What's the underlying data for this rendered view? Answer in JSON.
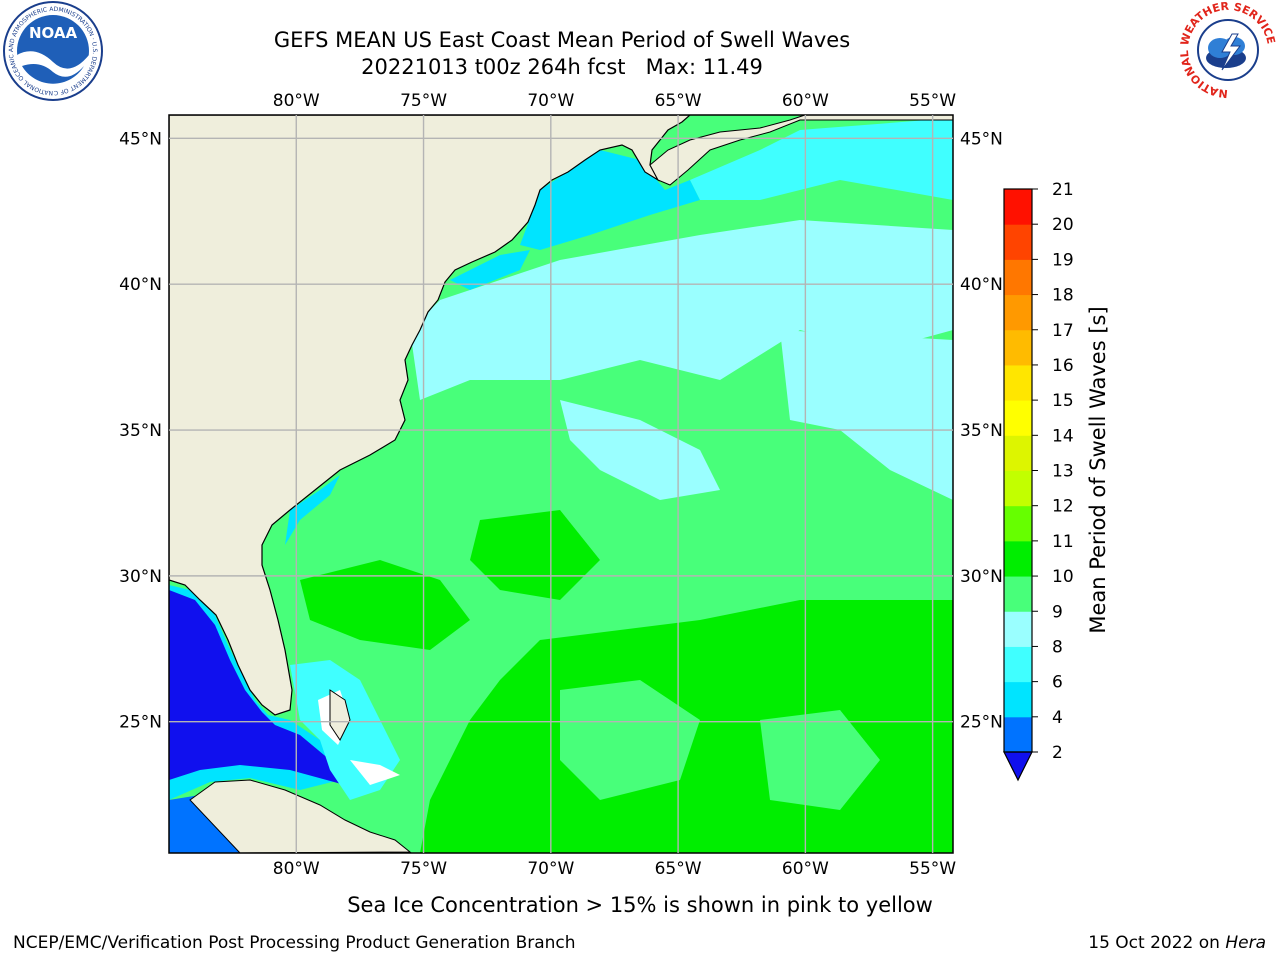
{
  "header": {
    "title_line1": "GEFS MEAN US East Coast Mean Period of Swell Waves",
    "title_line2": "20221013 t00z 264h fcst   Max: 11.49",
    "logo_left_text": "NOAA",
    "logo_left_ring": "NATIONAL OCEANIC AND ATMOSPHERIC ADMINISTRATION · U.S. DEPARTMENT OF COMMERCE",
    "logo_right_ring": "NATIONAL WEATHER SERVICE"
  },
  "map": {
    "lon_min": -85,
    "lon_max": -54.2,
    "lat_min": 20.5,
    "lat_max": 45.8,
    "lon_ticks": [
      {
        "value": -80,
        "label": "80°W"
      },
      {
        "value": -75,
        "label": "75°W"
      },
      {
        "value": -70,
        "label": "70°W"
      },
      {
        "value": -65,
        "label": "65°W"
      },
      {
        "value": -60,
        "label": "60°W"
      },
      {
        "value": -55,
        "label": "55°W"
      }
    ],
    "lat_ticks": [
      {
        "value": 45,
        "label": "45°N"
      },
      {
        "value": 40,
        "label": "40°N"
      },
      {
        "value": 35,
        "label": "35°N"
      },
      {
        "value": 30,
        "label": "30°N"
      },
      {
        "value": 25,
        "label": "25°N"
      }
    ],
    "land_color": "#efeedc",
    "grid_color": "#b4b4b4"
  },
  "colorbar": {
    "label": "Mean Period of Swell Waves [s]",
    "levels": [
      2,
      4,
      6,
      8,
      9,
      10,
      11,
      12,
      13,
      14,
      15,
      16,
      17,
      18,
      19,
      20,
      21
    ],
    "colors": [
      "#0073ff",
      "#00e4ff",
      "#40ffff",
      "#9affff",
      "#48ff7a",
      "#00ee00",
      "#66ff00",
      "#c2ff00",
      "#ddf500",
      "#ffff00",
      "#ffe600",
      "#ffbb00",
      "#ff9900",
      "#ff7700",
      "#ff4400",
      "#ff1100"
    ],
    "under_color": "#1010ee"
  },
  "footer": {
    "note": "Sea Ice Concentration > 15% is shown in pink to yellow",
    "credit": "NCEP/EMC/Verification Post Processing Product Generation Branch",
    "date": "15 Oct 2022 on ",
    "host": "Hera"
  }
}
